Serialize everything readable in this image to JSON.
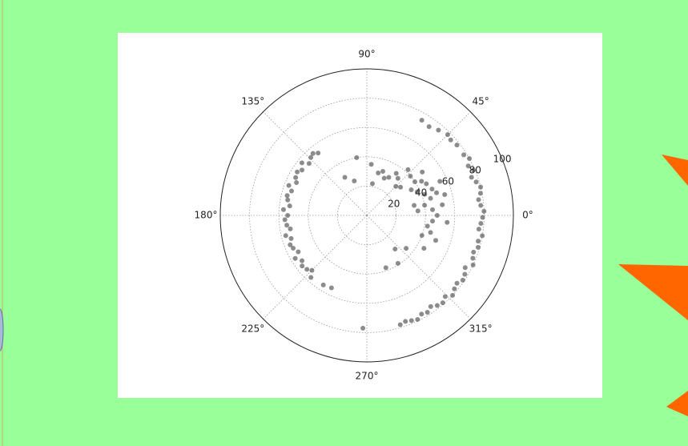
{
  "chart_data": {
    "type": "polar-scatter",
    "color": "#404040",
    "rlim": [
      0,
      100
    ],
    "rticks": [
      20,
      40,
      60,
      80,
      100
    ],
    "thetaticks": [
      {
        "value": 0,
        "label": "0°"
      },
      {
        "value": 45,
        "label": "45°"
      },
      {
        "value": 90,
        "label": "90°"
      },
      {
        "value": 135,
        "label": "135°"
      },
      {
        "value": 180,
        "label": "180°"
      },
      {
        "value": 225,
        "label": "225°"
      },
      {
        "value": 270,
        "label": "270°"
      },
      {
        "value": 315,
        "label": "315°"
      }
    ],
    "grid": true,
    "theta": [
      32,
      29,
      26,
      23,
      20,
      17,
      14,
      11,
      8,
      5,
      2,
      359,
      356,
      353,
      350,
      347,
      344,
      341,
      338,
      335,
      332,
      329,
      326,
      323,
      320,
      317,
      314,
      311,
      308,
      305,
      302,
      299,
      296,
      293,
      290,
      287,
      60,
      55,
      50,
      45,
      42,
      38,
      128,
      131,
      134,
      138,
      141,
      145,
      148,
      152,
      155,
      159,
      162,
      166,
      169,
      173,
      176,
      180,
      183,
      187,
      190,
      194,
      197,
      201,
      204,
      208,
      211,
      215,
      218,
      222,
      225,
      228,
      238,
      244,
      268,
      303,
      290,
      10,
      15,
      20,
      25,
      30,
      35,
      40,
      45,
      50,
      55,
      60,
      5,
      0,
      355,
      350,
      345,
      340,
      5,
      12,
      18,
      22,
      28,
      32,
      38,
      42,
      48,
      65,
      70,
      75,
      80,
      85,
      110,
      120,
      100,
      8,
      15,
      25,
      355,
      340,
      330,
      320,
      310
    ],
    "r": [
      78,
      80,
      77,
      79,
      76,
      78,
      80,
      79,
      77,
      78,
      80,
      79,
      78,
      77,
      80,
      78,
      79,
      77,
      78,
      80,
      76,
      78,
      79,
      77,
      78,
      80,
      77,
      79,
      78,
      76,
      78,
      77,
      79,
      78,
      77,
      78,
      75,
      74,
      76,
      78,
      77,
      78,
      54,
      56,
      55,
      53,
      57,
      54,
      56,
      55,
      53,
      57,
      54,
      56,
      55,
      53,
      57,
      54,
      56,
      55,
      53,
      57,
      54,
      56,
      55,
      53,
      57,
      54,
      56,
      55,
      53,
      57,
      56,
      55,
      77,
      39,
      38,
      40,
      45,
      42,
      38,
      35,
      40,
      30,
      28,
      33,
      35,
      30,
      45,
      48,
      45,
      42,
      45,
      40,
      35,
      33,
      50,
      48,
      46,
      44,
      48,
      40,
      42,
      28,
      32,
      30,
      22,
      35,
      25,
      30,
      40,
      52,
      55,
      55,
      55,
      50,
      45,
      35,
      30
    ]
  }
}
